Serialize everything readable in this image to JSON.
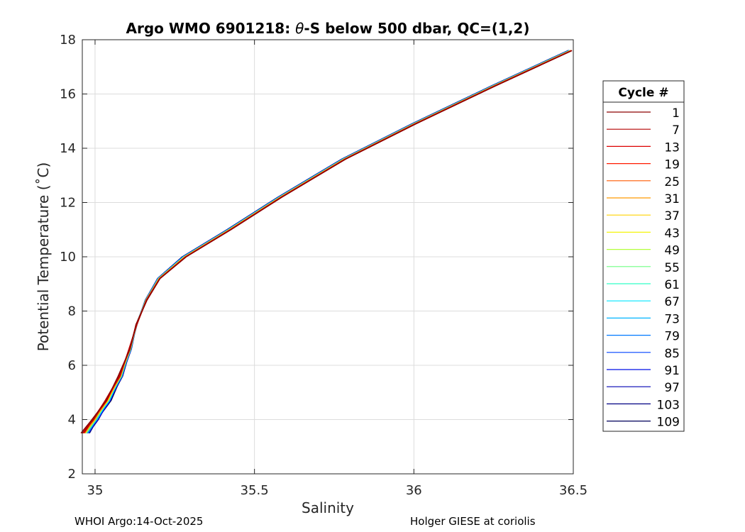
{
  "chart_data": {
    "type": "line",
    "title": "Argo WMO 6901218: θ-S below 500 dbar,  QC=(1,2)",
    "title_prefix": "Argo WMO 6901218: ",
    "title_theta": "θ",
    "title_suffix": "-S below 500 dbar,  QC=(1,2)",
    "xlabel": "Salinity",
    "ylabel": "Potential Temperature (˚C)",
    "xlim": [
      34.96,
      36.5
    ],
    "ylim": [
      2,
      18
    ],
    "xticks": [
      35,
      35.5,
      36,
      36.5
    ],
    "xtick_labels": [
      "35",
      "35.5",
      "36",
      "36.5"
    ],
    "yticks": [
      2,
      4,
      6,
      8,
      10,
      12,
      14,
      16,
      18
    ],
    "ytick_labels": [
      "2",
      "4",
      "6",
      "8",
      "10",
      "12",
      "14",
      "16",
      "18"
    ],
    "grid": true,
    "legend_position": "right",
    "legend_title": "Cycle #",
    "series": [
      {
        "name": "1",
        "color": "#8c0000"
      },
      {
        "name": "7",
        "color": "#b40000"
      },
      {
        "name": "13",
        "color": "#dc0000"
      },
      {
        "name": "19",
        "color": "#ff1a00"
      },
      {
        "name": "25",
        "color": "#ff5a00"
      },
      {
        "name": "31",
        "color": "#ff9a00"
      },
      {
        "name": "37",
        "color": "#ffd200"
      },
      {
        "name": "43",
        "color": "#f4f40a"
      },
      {
        "name": "49",
        "color": "#b4ff3c"
      },
      {
        "name": "55",
        "color": "#6eff82"
      },
      {
        "name": "61",
        "color": "#30ffc8"
      },
      {
        "name": "67",
        "color": "#00e6ff"
      },
      {
        "name": "73",
        "color": "#00b4ff"
      },
      {
        "name": "79",
        "color": "#0078ff"
      },
      {
        "name": "85",
        "color": "#0040ff"
      },
      {
        "name": "91",
        "color": "#0010e6"
      },
      {
        "name": "97",
        "color": "#0000b4"
      },
      {
        "name": "103",
        "color": "#000082"
      },
      {
        "name": "109",
        "color": "#00005a"
      }
    ],
    "profile_base": [
      [
        34.97,
        3.5
      ],
      [
        35.0,
        4.0
      ],
      [
        35.04,
        4.7
      ],
      [
        35.08,
        5.6
      ],
      [
        35.11,
        6.6
      ],
      [
        35.13,
        7.5
      ],
      [
        35.16,
        8.4
      ],
      [
        35.2,
        9.2
      ],
      [
        35.28,
        10.0
      ],
      [
        35.42,
        11.0
      ],
      [
        35.58,
        12.2
      ],
      [
        35.78,
        13.6
      ],
      [
        36.0,
        14.9
      ],
      [
        36.25,
        16.3
      ],
      [
        36.49,
        17.6
      ]
    ]
  },
  "footer": {
    "left": "WHOI Argo:14-Oct-2025",
    "right": "Holger GIESE at coriolis"
  }
}
